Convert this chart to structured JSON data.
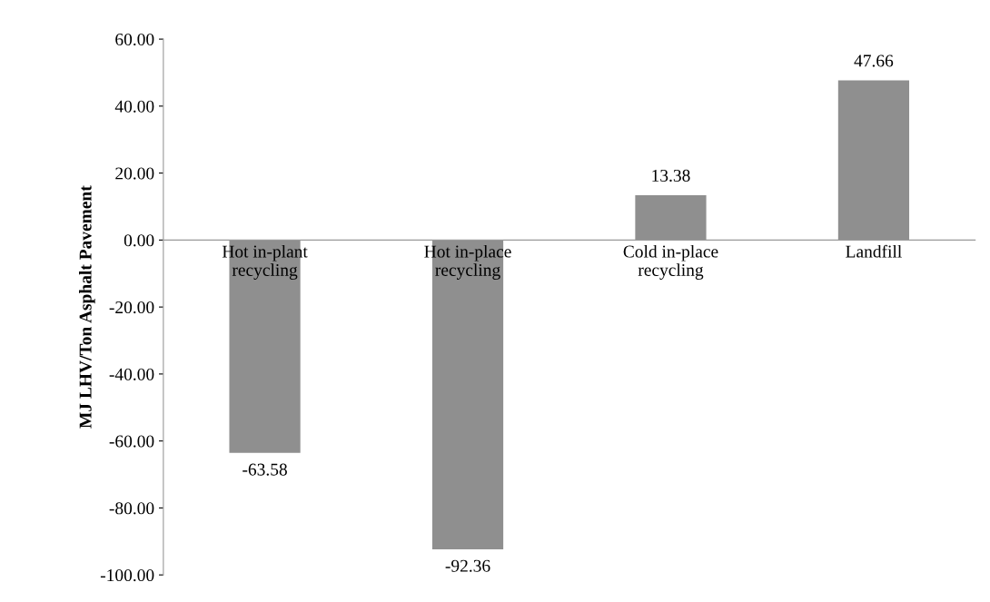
{
  "chart_data": {
    "type": "bar",
    "ylabel": "MJ LHV/Ton Asphalt Pavement",
    "categories": [
      "Hot in-plant\nrecycling",
      "Hot in-place\nrecycling",
      "Cold in-place\nrecycling",
      "Landfill"
    ],
    "values": [
      -63.58,
      -92.36,
      13.38,
      47.66
    ],
    "color": "#8f8f8f",
    "ylim": [
      -100,
      60
    ],
    "yticks": [
      {
        "value": -100,
        "label": "-100.00"
      },
      {
        "value": -80,
        "label": "-80.00"
      },
      {
        "value": -60,
        "label": "-60.00"
      },
      {
        "value": -40,
        "label": "-40.00"
      },
      {
        "value": -20,
        "label": "-20.00"
      },
      {
        "value": 0,
        "label": "0.00"
      },
      {
        "value": 20,
        "label": "20.00"
      },
      {
        "value": 40,
        "label": "40.00"
      },
      {
        "value": 60,
        "label": "60.00"
      }
    ],
    "data_labels": true,
    "grid": false,
    "legend": false
  }
}
